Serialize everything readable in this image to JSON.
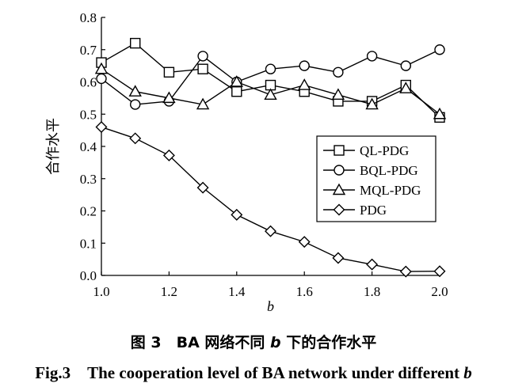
{
  "chart_data": {
    "type": "line",
    "title": "",
    "xlabel": "b",
    "ylabel": "合作水平",
    "xlim": [
      1.0,
      2.0
    ],
    "ylim": [
      0.0,
      0.8
    ],
    "x_ticks": [
      "1.0",
      "1.2",
      "1.4",
      "1.6",
      "1.8",
      "2.0"
    ],
    "y_ticks": [
      "0.0",
      "0.1",
      "0.2",
      "0.3",
      "0.4",
      "0.5",
      "0.6",
      "0.7",
      "0.8"
    ],
    "x": [
      1.0,
      1.1,
      1.2,
      1.3,
      1.4,
      1.5,
      1.6,
      1.7,
      1.8,
      1.9,
      2.0
    ],
    "legend_position": "right",
    "grid": false,
    "series": [
      {
        "name": "QL-PDG",
        "marker": "square",
        "values": [
          0.66,
          0.72,
          0.63,
          0.64,
          0.57,
          0.59,
          0.57,
          0.54,
          0.54,
          0.59,
          0.49
        ]
      },
      {
        "name": "BQL-PDG",
        "marker": "circle",
        "values": [
          0.61,
          0.53,
          0.54,
          0.68,
          0.6,
          0.64,
          0.65,
          0.63,
          0.68,
          0.65,
          0.7
        ]
      },
      {
        "name": "MQL-PDG",
        "marker": "triangle",
        "values": [
          0.64,
          0.57,
          0.55,
          0.53,
          0.6,
          0.56,
          0.59,
          0.56,
          0.53,
          0.58,
          0.5
        ]
      },
      {
        "name": "PDG",
        "marker": "diamond",
        "values": [
          0.46,
          0.425,
          0.372,
          0.272,
          0.188,
          0.137,
          0.104,
          0.054,
          0.034,
          0.012,
          0.013
        ]
      }
    ]
  },
  "caption": {
    "zh_prefix": "图 3　BA 网络不同 ",
    "zh_var": "b",
    "zh_suffix": " 下的合作水平",
    "en_prefix": "Fig.3　The cooperation level of BA network under different ",
    "en_var": "b"
  }
}
